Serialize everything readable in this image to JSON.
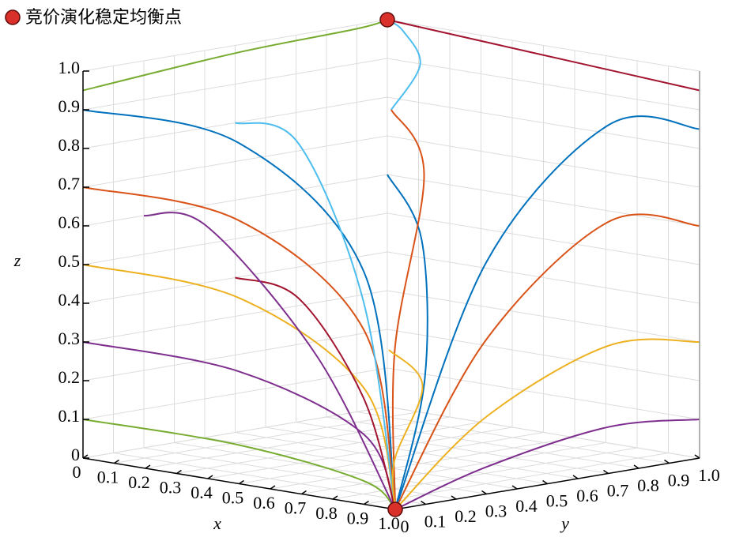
{
  "chart_data": {
    "type": "line3d",
    "xlabel": "x",
    "ylabel": "y",
    "zlabel": "z",
    "xlim": [
      0,
      1
    ],
    "ylim": [
      0,
      1
    ],
    "zlim": [
      0,
      1
    ],
    "xticks": [
      0,
      0.1,
      0.2,
      0.3,
      0.4,
      0.5,
      0.6,
      0.7,
      0.8,
      0.9,
      {
        "value": 1,
        "label": "1.0"
      }
    ],
    "yticks": [
      0,
      0.1,
      0.2,
      0.3,
      0.4,
      0.5,
      0.6,
      0.7,
      0.8,
      0.9,
      {
        "value": 1,
        "label": "1.0"
      }
    ],
    "zticks": [
      0,
      0.1,
      0.2,
      0.3,
      0.4,
      0.5,
      0.6,
      0.7,
      0.8,
      0.9,
      {
        "value": 1,
        "label": "1.0"
      }
    ],
    "grid": true,
    "legend": "top-left",
    "equilibria": {
      "name": "竞价演化稳定均衡点",
      "color": "#d9302a",
      "x": [
        1,
        0
      ],
      "y": [
        0,
        1
      ],
      "z": [
        0,
        1
      ]
    },
    "trajectories": [
      {
        "color": "#0072BD",
        "x": [
          0,
          0.5,
          0.9,
          1
        ],
        "y": [
          0,
          0,
          0,
          0
        ],
        "z": [
          0.9,
          0.88,
          0.6,
          0
        ]
      },
      {
        "color": "#D95319",
        "x": [
          0,
          0.5,
          0.9,
          1
        ],
        "y": [
          0,
          0,
          0,
          0
        ],
        "z": [
          0.7,
          0.68,
          0.45,
          0
        ]
      },
      {
        "color": "#EDB120",
        "x": [
          0,
          0.5,
          0.9,
          1
        ],
        "y": [
          0,
          0,
          0,
          0
        ],
        "z": [
          0.5,
          0.48,
          0.3,
          0
        ]
      },
      {
        "color": "#7E2F8E",
        "x": [
          0,
          0.5,
          0.9,
          1
        ],
        "y": [
          0,
          0,
          0,
          0
        ],
        "z": [
          0.3,
          0.29,
          0.18,
          0
        ]
      },
      {
        "color": "#77AC30",
        "x": [
          0,
          0.5,
          0.9,
          1
        ],
        "y": [
          0,
          0,
          0,
          0
        ],
        "z": [
          0.1,
          0.1,
          0.06,
          0
        ]
      },
      {
        "color": "#4DBEEE",
        "x": [
          0,
          0.3,
          0.8,
          1
        ],
        "y": [
          0.5,
          0.4,
          0.1,
          0
        ],
        "z": [
          0.8,
          0.8,
          0.5,
          0
        ]
      },
      {
        "color": "#A2142F",
        "x": [
          0,
          0.3,
          0.8,
          1
        ],
        "y": [
          0.5,
          0.4,
          0.1,
          0
        ],
        "z": [
          0.4,
          0.4,
          0.25,
          0
        ]
      },
      {
        "color": "#0072BD",
        "x": [
          1,
          1,
          1,
          1
        ],
        "y": [
          1,
          0.7,
          0.3,
          0
        ],
        "z": [
          0.85,
          0.9,
          0.6,
          0
        ]
      },
      {
        "color": "#D95319",
        "x": [
          1,
          1,
          1,
          1
        ],
        "y": [
          1,
          0.7,
          0.3,
          0
        ],
        "z": [
          0.6,
          0.65,
          0.4,
          0
        ]
      },
      {
        "color": "#EDB120",
        "x": [
          1,
          1,
          1,
          1
        ],
        "y": [
          1,
          0.7,
          0.3,
          0
        ],
        "z": [
          0.3,
          0.33,
          0.2,
          0
        ]
      },
      {
        "color": "#7E2F8E",
        "x": [
          1,
          1,
          1,
          1
        ],
        "y": [
          1,
          0.7,
          0.3,
          0
        ],
        "z": [
          0.1,
          0.12,
          0.07,
          0
        ]
      },
      {
        "color": "#77AC30",
        "x": [
          0,
          0,
          0,
          0
        ],
        "y": [
          0,
          0.5,
          0.9,
          1
        ],
        "z": [
          0.95,
          0.98,
          0.99,
          1
        ]
      },
      {
        "color": "#4DBEEE",
        "x": [
          0.5,
          0.3,
          0.1,
          0
        ],
        "y": [
          0.5,
          0.8,
          0.95,
          1
        ],
        "z": [
          0.9,
          0.95,
          0.99,
          1
        ]
      },
      {
        "color": "#A2142F",
        "x": [
          1,
          0.6,
          0.2,
          0
        ],
        "y": [
          1,
          1,
          1,
          1
        ],
        "z": [
          0.95,
          0.97,
          0.99,
          1
        ]
      },
      {
        "color": "#0072BD",
        "x": [
          0,
          0.5,
          0.9,
          1
        ],
        "y": [
          1,
          0.6,
          0.2,
          0
        ],
        "z": [
          0.6,
          0.55,
          0.3,
          0
        ]
      },
      {
        "color": "#D95319",
        "x": [
          0.5,
          0.8,
          0.95,
          1
        ],
        "y": [
          0.5,
          0.3,
          0.05,
          0
        ],
        "z": [
          0.9,
          0.8,
          0.4,
          0
        ]
      },
      {
        "color": "#EDB120",
        "x": [
          0.2,
          0.6,
          0.9,
          1
        ],
        "y": [
          0.8,
          0.5,
          0.1,
          0
        ],
        "z": [
          0.2,
          0.2,
          0.1,
          0
        ]
      },
      {
        "color": "#7E2F8E",
        "x": [
          0,
          0.2,
          0.7,
          1
        ],
        "y": [
          0.2,
          0.2,
          0.05,
          0
        ],
        "z": [
          0.6,
          0.6,
          0.35,
          0
        ]
      }
    ]
  }
}
